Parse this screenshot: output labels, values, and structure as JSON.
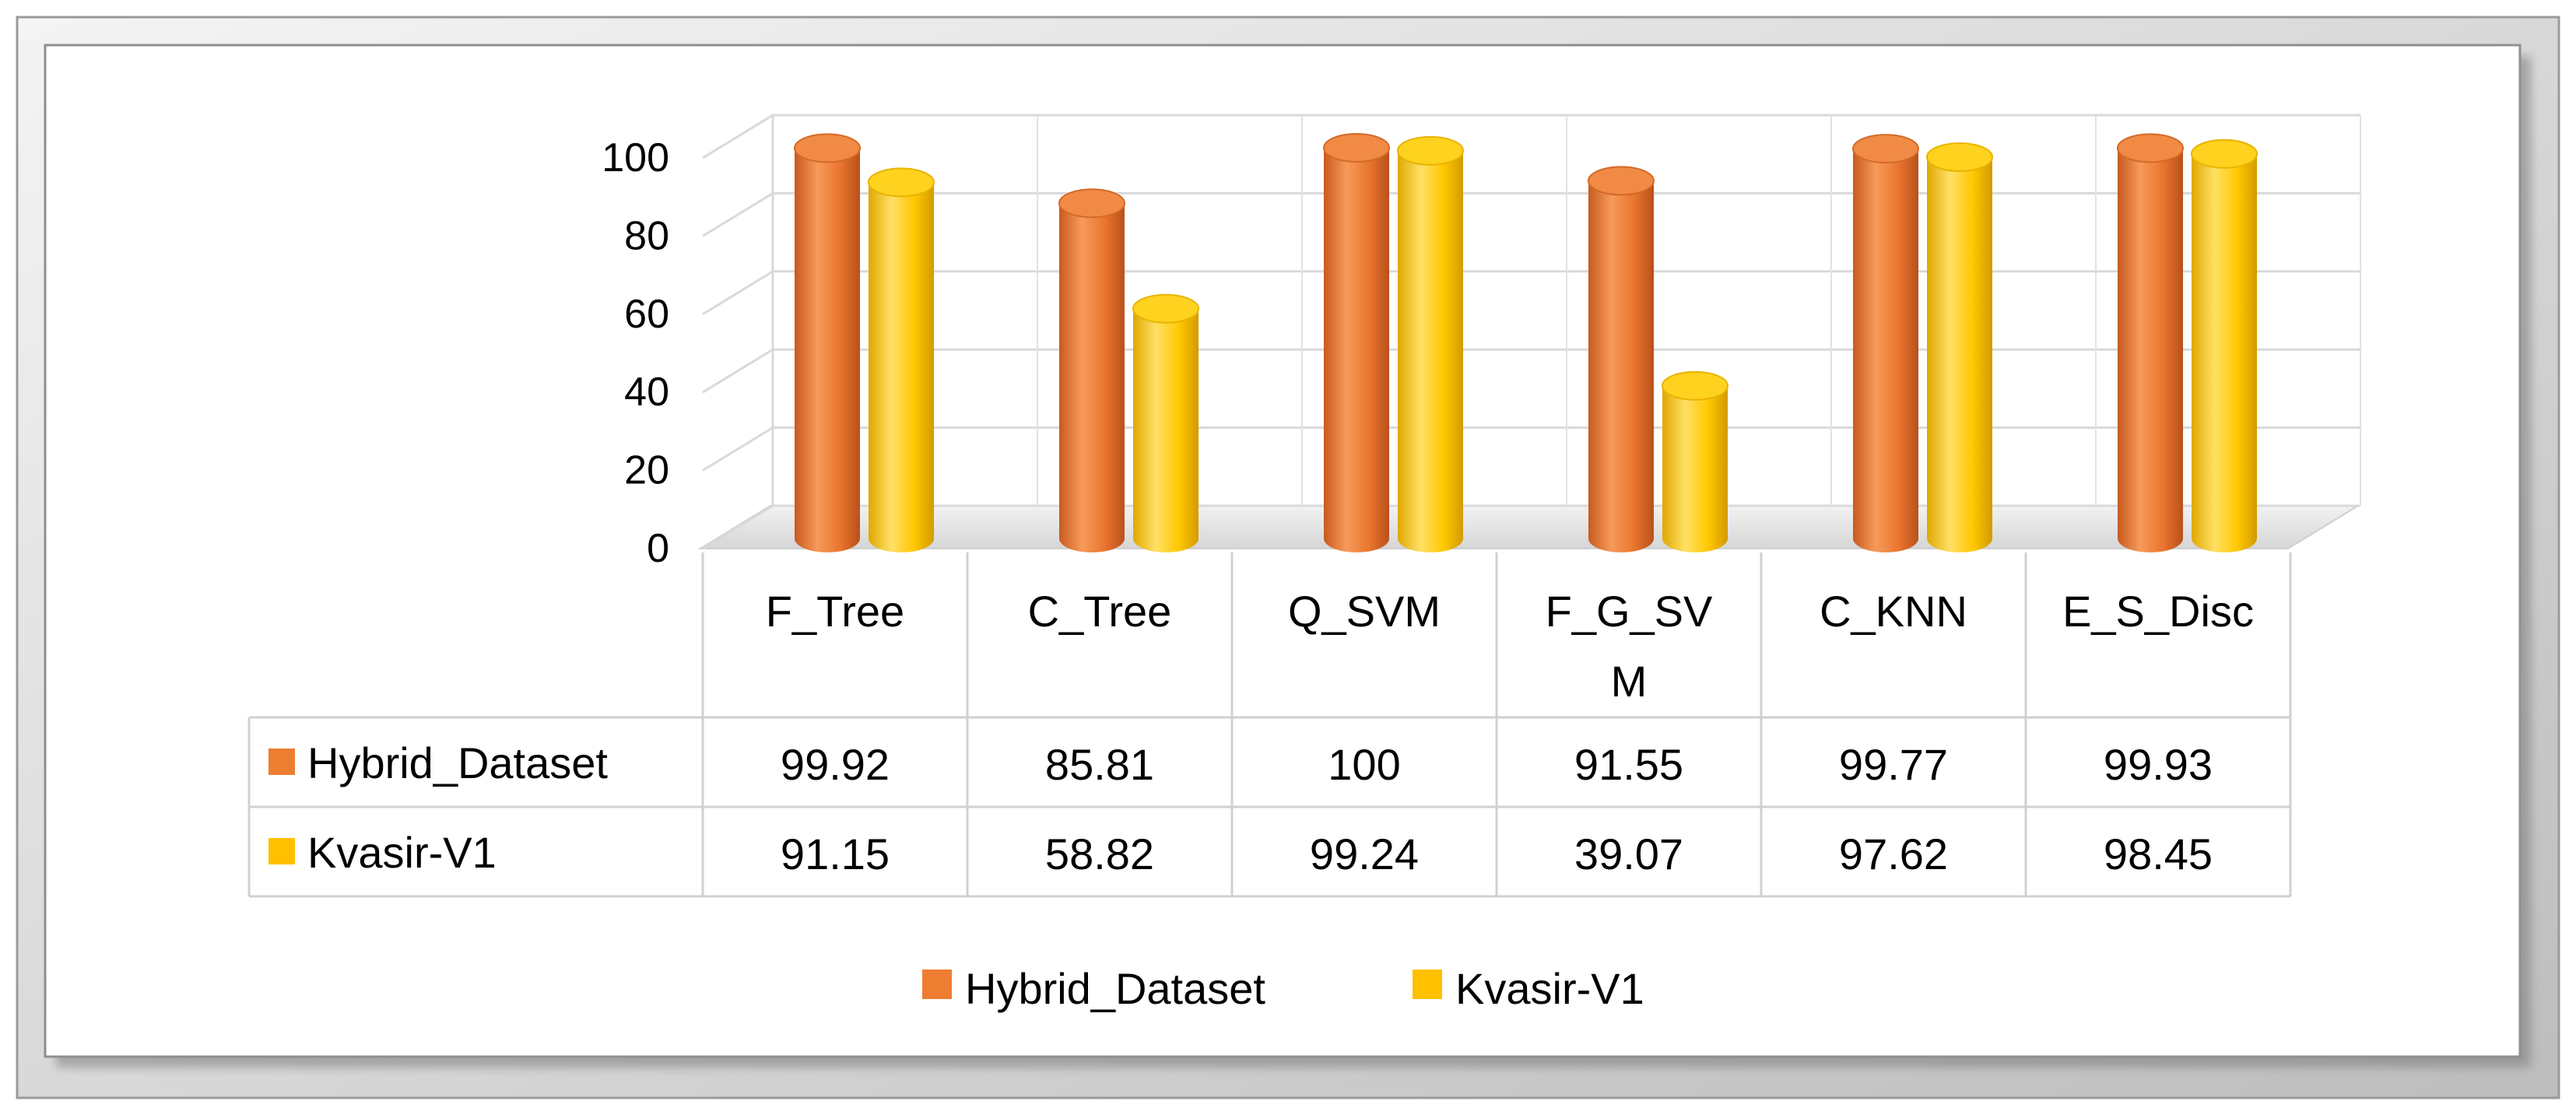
{
  "chart_data": {
    "type": "bar",
    "title": "",
    "xlabel": "",
    "ylabel": "",
    "ylim": [
      0,
      100
    ],
    "y_ticks": [
      "0",
      "20",
      "40",
      "60",
      "80",
      "100"
    ],
    "categories": [
      "F_Tree",
      "C_Tree",
      "Q_SVM",
      "F_G_SVM",
      "C_KNN",
      "E_S_Disc"
    ],
    "category_display": [
      [
        "F_Tree"
      ],
      [
        "C_Tree"
      ],
      [
        "Q_SVM"
      ],
      [
        "F_G_SV",
        "M"
      ],
      [
        "C_KNN"
      ],
      [
        "E_S_Disc"
      ]
    ],
    "series": [
      {
        "name": "Hybrid_Dataset",
        "color": "#ED7D31",
        "values": [
          99.92,
          85.81,
          100,
          91.55,
          99.77,
          99.93
        ],
        "labels": [
          "99.92",
          "85.81",
          "100",
          "91.55",
          "99.77",
          "99.93"
        ]
      },
      {
        "name": "Kvasir-V1",
        "color": "#FFC000",
        "values": [
          91.15,
          58.82,
          99.24,
          39.07,
          97.62,
          98.45
        ],
        "labels": [
          "91.15",
          "58.82",
          "99.24",
          "39.07",
          "97.62",
          "98.45"
        ]
      }
    ],
    "grid": true,
    "data_table": true,
    "legend_position": "bottom"
  }
}
